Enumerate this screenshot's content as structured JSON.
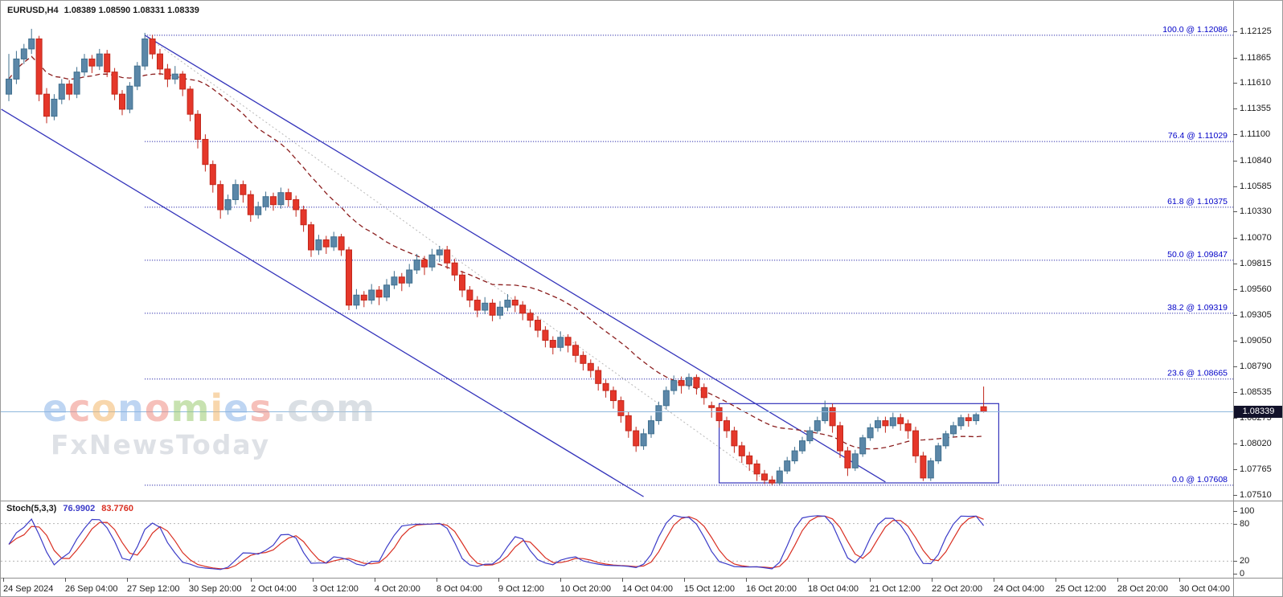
{
  "title": {
    "symbol": "EURUSD,H4",
    "ohlc": "1.08389 1.08590 1.08331 1.08339"
  },
  "watermark": {
    "brand_letters": [
      [
        "e",
        "#8ab4e8"
      ],
      [
        "c",
        "#ef8d82"
      ],
      [
        "o",
        "#f4b76b"
      ],
      [
        "n",
        "#8ab4e8"
      ],
      [
        "o",
        "#ef8d82"
      ],
      [
        "m",
        "#9ccc70"
      ],
      [
        "i",
        "#f4b76b"
      ],
      [
        "e",
        "#8ab4e8"
      ],
      [
        "s",
        "#ef8d82"
      ],
      [
        ".com",
        "#bcc5cf"
      ]
    ],
    "subtitle": "FxNewsToday"
  },
  "price_axis": {
    "ticks": [
      "1.12125",
      "1.11865",
      "1.11610",
      "1.11355",
      "1.11100",
      "1.10840",
      "1.10585",
      "1.10330",
      "1.10070",
      "1.09815",
      "1.09560",
      "1.09305",
      "1.09050",
      "1.08790",
      "1.08535",
      "1.08275",
      "1.08020",
      "1.07765",
      "1.07510"
    ],
    "current_badge": "1.08339"
  },
  "time_axis": {
    "labels": [
      "24 Sep 2024",
      "26 Sep 04:00",
      "27 Sep 12:00",
      "30 Sep 20:00",
      "2 Oct 04:00",
      "3 Oct 12:00",
      "4 Oct 20:00",
      "8 Oct 04:00",
      "9 Oct 12:00",
      "10 Oct 20:00",
      "14 Oct 04:00",
      "15 Oct 12:00",
      "16 Oct 20:00",
      "18 Oct 04:00",
      "21 Oct 12:00",
      "22 Oct 20:00",
      "24 Oct 04:00",
      "25 Oct 12:00",
      "28 Oct 20:00",
      "30 Oct 04:00"
    ]
  },
  "stoch_panel": {
    "name": "Stoch(5,3,3)",
    "k_value": "76.9902",
    "d_value": "83.7760",
    "axis_ticks": [
      100,
      80,
      20,
      0
    ],
    "level_lines": [
      80,
      20
    ],
    "k_color": "#3c3cc8",
    "d_color": "#d92f22"
  },
  "chart_data": {
    "type": "candlestick",
    "symbol": "EURUSD",
    "timeframe": "H4",
    "current_price": 1.08339,
    "colors": {
      "up": "#5b87a8",
      "up_border": "#40708f",
      "down": "#e5372a",
      "down_border": "#c1271b",
      "current_line": "#8fb8dc",
      "channel": "#3434bb",
      "fib_line": "#000099",
      "fib_label": "#0000c8",
      "fib_diagonal": "#b8b8b8",
      "ma": "#8b1e1e",
      "rect": "#3434bb"
    },
    "ma": {
      "period": 20,
      "style": "dashed"
    },
    "fib_levels": [
      {
        "label": "100.0 @ 1.12086",
        "price": 1.12086
      },
      {
        "label": "76.4 @ 1.11029",
        "price": 1.11029
      },
      {
        "label": "61.8 @ 1.10375",
        "price": 1.10375
      },
      {
        "label": "50.0 @ 1.09847",
        "price": 1.09847
      },
      {
        "label": "38.2 @ 1.09319",
        "price": 1.09319
      },
      {
        "label": "23.6 @ 1.08665",
        "price": 1.08665
      },
      {
        "label": "0.0 @ 1.07608",
        "price": 1.07608
      }
    ],
    "fib_anchor": {
      "from": {
        "index": 18,
        "price": 1.12086
      },
      "to": {
        "index": 101,
        "price": 1.07608
      }
    },
    "channel": {
      "upper": {
        "i1": 18,
        "p1": 1.12086,
        "i2": 116,
        "p2": 1.0764
      },
      "lower": {
        "i1": -1,
        "p1": 1.1135,
        "i2": 84,
        "p2": 1.07494
      }
    },
    "rectangle": {
      "i1": 94,
      "p1": 1.0842,
      "i2": 131,
      "p2": 1.07631
    },
    "ohlc": [
      [
        1.115,
        1.119,
        1.1143,
        1.1165
      ],
      [
        1.1165,
        1.1193,
        1.116,
        1.1185
      ],
      [
        1.1185,
        1.12,
        1.118,
        1.1195
      ],
      [
        1.1195,
        1.1215,
        1.119,
        1.1205
      ],
      [
        1.1205,
        1.1208,
        1.1143,
        1.115
      ],
      [
        1.115,
        1.1156,
        1.1121,
        1.1128
      ],
      [
        1.1128,
        1.115,
        1.1124,
        1.1145
      ],
      [
        1.1145,
        1.1165,
        1.114,
        1.116
      ],
      [
        1.116,
        1.1164,
        1.1144,
        1.115
      ],
      [
        1.115,
        1.1177,
        1.1146,
        1.1172
      ],
      [
        1.1172,
        1.119,
        1.1168,
        1.1185
      ],
      [
        1.1185,
        1.1189,
        1.1171,
        1.1178
      ],
      [
        1.1178,
        1.1195,
        1.1174,
        1.119
      ],
      [
        1.119,
        1.1194,
        1.1167,
        1.1172
      ],
      [
        1.1172,
        1.1176,
        1.1144,
        1.115
      ],
      [
        1.115,
        1.1154,
        1.1129,
        1.1135
      ],
      [
        1.1135,
        1.1162,
        1.1131,
        1.1158
      ],
      [
        1.1158,
        1.1182,
        1.1154,
        1.1178
      ],
      [
        1.1178,
        1.1211,
        1.1174,
        1.1205
      ],
      [
        1.1205,
        1.1209,
        1.1185,
        1.119
      ],
      [
        1.119,
        1.1195,
        1.1169,
        1.1175
      ],
      [
        1.1175,
        1.118,
        1.1157,
        1.1165
      ],
      [
        1.1165,
        1.1178,
        1.116,
        1.117
      ],
      [
        1.117,
        1.1173,
        1.1148,
        1.1155
      ],
      [
        1.1155,
        1.1158,
        1.1123,
        1.113
      ],
      [
        1.113,
        1.1134,
        1.1096,
        1.1105
      ],
      [
        1.1105,
        1.111,
        1.1073,
        1.108
      ],
      [
        1.108,
        1.1084,
        1.1052,
        1.106
      ],
      [
        1.106,
        1.1064,
        1.1026,
        1.1035
      ],
      [
        1.1035,
        1.105,
        1.103,
        1.1045
      ],
      [
        1.1045,
        1.1065,
        1.104,
        1.106
      ],
      [
        1.106,
        1.1064,
        1.1042,
        1.105
      ],
      [
        1.105,
        1.1054,
        1.1023,
        1.103
      ],
      [
        1.103,
        1.1043,
        1.1026,
        1.1038
      ],
      [
        1.1038,
        1.1053,
        1.1034,
        1.1048
      ],
      [
        1.1048,
        1.1052,
        1.1034,
        1.104
      ],
      [
        1.104,
        1.1057,
        1.1036,
        1.1052
      ],
      [
        1.1052,
        1.1056,
        1.1038,
        1.1045
      ],
      [
        1.1045,
        1.1049,
        1.1028,
        1.1035
      ],
      [
        1.1035,
        1.1039,
        1.1013,
        1.102
      ],
      [
        1.102,
        1.1023,
        1.0988,
        1.0995
      ],
      [
        1.0995,
        1.101,
        1.099,
        1.1005
      ],
      [
        1.1005,
        1.1009,
        1.0991,
        1.0998
      ],
      [
        1.0998,
        1.1013,
        1.0994,
        1.1008
      ],
      [
        1.1008,
        1.1011,
        1.0989,
        1.0995
      ],
      [
        1.0995,
        1.0998,
        1.0935,
        1.094
      ],
      [
        1.094,
        1.0956,
        1.0936,
        1.095
      ],
      [
        1.095,
        1.0954,
        1.0938,
        1.0945
      ],
      [
        1.0945,
        1.0961,
        1.0941,
        1.0955
      ],
      [
        1.0955,
        1.0959,
        1.094,
        1.0948
      ],
      [
        1.0948,
        1.0966,
        1.0944,
        1.096
      ],
      [
        1.096,
        1.0974,
        1.0956,
        1.0968
      ],
      [
        1.0968,
        1.0972,
        1.0954,
        1.0962
      ],
      [
        1.0962,
        1.0981,
        1.0958,
        1.0975
      ],
      [
        1.0975,
        1.0991,
        1.0971,
        1.0985
      ],
      [
        1.0985,
        1.0989,
        1.097,
        1.0978
      ],
      [
        1.0978,
        1.0996,
        1.0974,
        1.099
      ],
      [
        1.099,
        1.0999,
        1.0983,
        1.0995
      ],
      [
        1.0995,
        1.0999,
        1.0976,
        1.0982
      ],
      [
        1.0982,
        1.0986,
        1.0964,
        1.097
      ],
      [
        1.097,
        1.0974,
        1.0948,
        1.0955
      ],
      [
        1.0955,
        1.0959,
        1.0938,
        1.0945
      ],
      [
        1.0945,
        1.0949,
        1.0928,
        1.0935
      ],
      [
        1.0935,
        1.0948,
        1.0931,
        1.0942
      ],
      [
        1.0942,
        1.0946,
        1.0924,
        1.093
      ],
      [
        1.093,
        1.0944,
        1.0926,
        1.0938
      ],
      [
        1.0938,
        1.0951,
        1.0934,
        1.0945
      ],
      [
        1.0945,
        1.0949,
        1.0933,
        1.094
      ],
      [
        1.094,
        1.0944,
        1.0925,
        1.0932
      ],
      [
        1.0932,
        1.0936,
        1.0918,
        1.0925
      ],
      [
        1.0925,
        1.0929,
        1.0908,
        1.0915
      ],
      [
        1.0915,
        1.0919,
        1.0898,
        1.0905
      ],
      [
        1.0905,
        1.0909,
        1.0891,
        1.0898
      ],
      [
        1.0898,
        1.0914,
        1.0894,
        1.0908
      ],
      [
        1.0908,
        1.0911,
        1.0893,
        1.09
      ],
      [
        1.09,
        1.0904,
        1.0883,
        1.089
      ],
      [
        1.089,
        1.0894,
        1.0875,
        1.0882
      ],
      [
        1.0882,
        1.0886,
        1.0868,
        1.0875
      ],
      [
        1.0875,
        1.0879,
        1.0855,
        1.0862
      ],
      [
        1.0862,
        1.0866,
        1.0848,
        1.0855
      ],
      [
        1.0855,
        1.0859,
        1.0837,
        1.0845
      ],
      [
        1.0845,
        1.0849,
        1.0823,
        1.083
      ],
      [
        1.083,
        1.0834,
        1.0808,
        1.0815
      ],
      [
        1.0815,
        1.0819,
        1.0794,
        1.08
      ],
      [
        1.08,
        1.0817,
        1.0796,
        1.0812
      ],
      [
        1.0812,
        1.083,
        1.0808,
        1.0825
      ],
      [
        1.0825,
        1.0844,
        1.0821,
        1.084
      ],
      [
        1.084,
        1.0859,
        1.0836,
        1.0855
      ],
      [
        1.0855,
        1.087,
        1.0851,
        1.0865
      ],
      [
        1.0865,
        1.0869,
        1.0852,
        1.086
      ],
      [
        1.086,
        1.0872,
        1.0856,
        1.0868
      ],
      [
        1.0868,
        1.0871,
        1.0851,
        1.0858
      ],
      [
        1.0858,
        1.0862,
        1.0841,
        1.0848
      ],
      [
        1.084,
        1.0844,
        1.0828,
        1.0838
      ],
      [
        1.0838,
        1.0841,
        1.0818,
        1.0825
      ],
      [
        1.0825,
        1.0829,
        1.0808,
        1.0815
      ],
      [
        1.0815,
        1.0819,
        1.0793,
        1.08
      ],
      [
        1.08,
        1.0804,
        1.0783,
        1.079
      ],
      [
        1.079,
        1.0794,
        1.0775,
        1.0782
      ],
      [
        1.0782,
        1.0786,
        1.0765,
        1.0772
      ],
      [
        1.0772,
        1.0776,
        1.0762,
        1.0766
      ],
      [
        1.0766,
        1.077,
        1.07608,
        1.0763
      ],
      [
        1.0763,
        1.0779,
        1.0761,
        1.0775
      ],
      [
        1.0775,
        1.0789,
        1.0772,
        1.0785
      ],
      [
        1.0785,
        1.0799,
        1.0782,
        1.0795
      ],
      [
        1.0795,
        1.0809,
        1.0792,
        1.0805
      ],
      [
        1.0805,
        1.0819,
        1.0802,
        1.0815
      ],
      [
        1.0815,
        1.0829,
        1.0812,
        1.0825
      ],
      [
        1.0825,
        1.0845,
        1.0822,
        1.0838
      ],
      [
        1.0838,
        1.0842,
        1.0813,
        1.082
      ],
      [
        1.082,
        1.0824,
        1.0788,
        1.0795
      ],
      [
        1.0795,
        1.0799,
        1.077,
        1.0778
      ],
      [
        1.0778,
        1.0796,
        1.0775,
        1.0792
      ],
      [
        1.0792,
        1.0811,
        1.0789,
        1.0808
      ],
      [
        1.0808,
        1.0822,
        1.0805,
        1.0818
      ],
      [
        1.0818,
        1.0829,
        1.0814,
        1.0825
      ],
      [
        1.0825,
        1.0829,
        1.0813,
        1.082
      ],
      [
        1.082,
        1.0833,
        1.0817,
        1.0828
      ],
      [
        1.0828,
        1.0832,
        1.0815,
        1.0822
      ],
      [
        1.0822,
        1.0826,
        1.0807,
        1.0815
      ],
      [
        1.0815,
        1.0819,
        1.0783,
        1.079
      ],
      [
        1.079,
        1.0794,
        1.0765,
        1.0768
      ],
      [
        1.0768,
        1.0788,
        1.0765,
        1.0785
      ],
      [
        1.0785,
        1.0803,
        1.0782,
        1.08
      ],
      [
        1.08,
        1.0815,
        1.0797,
        1.0812
      ],
      [
        1.0812,
        1.0824,
        1.0809,
        1.082
      ],
      [
        1.082,
        1.0831,
        1.0816,
        1.0828
      ],
      [
        1.0828,
        1.0832,
        1.0819,
        1.0825
      ],
      [
        1.0825,
        1.0833,
        1.0821,
        1.0831
      ],
      [
        1.08389,
        1.0859,
        1.08331,
        1.08339
      ]
    ]
  }
}
